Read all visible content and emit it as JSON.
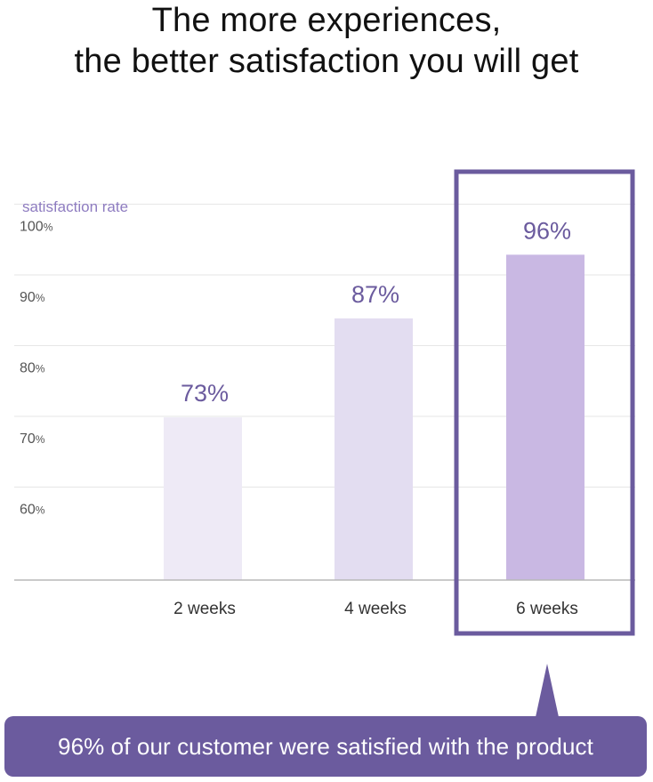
{
  "title": {
    "line1": "The more experiences,",
    "line2": "the better satisfaction you will get"
  },
  "chart_data": {
    "type": "bar",
    "ylabel": "satisfaction rate",
    "categories": [
      "2 weeks",
      "4 weeks",
      "6 weeks"
    ],
    "values": [
      73,
      87,
      96
    ],
    "value_labels": [
      "73%",
      "87%",
      "96%"
    ],
    "yticks": [
      "100%",
      "90%",
      "80%",
      "70%",
      "60%"
    ],
    "ytick_values": [
      100,
      90,
      80,
      70,
      60
    ],
    "ylim": [
      50,
      100
    ],
    "grid": true,
    "highlight_index": 2,
    "colors": {
      "bar_light": "#eeeaf6",
      "bar_mid": "#e3ddf1",
      "bar_highlight": "#c9b8e3",
      "value_label": "#6b5b9e",
      "ylabel": "#8e7cc0",
      "highlight_border": "#6b5b9e",
      "grid": "#e6e6e6",
      "axis": "#b8b8b8",
      "tick": "#555555"
    }
  },
  "callout": {
    "text": "96% of our customer were satisfied with the product",
    "color": "#6b5b9e"
  }
}
